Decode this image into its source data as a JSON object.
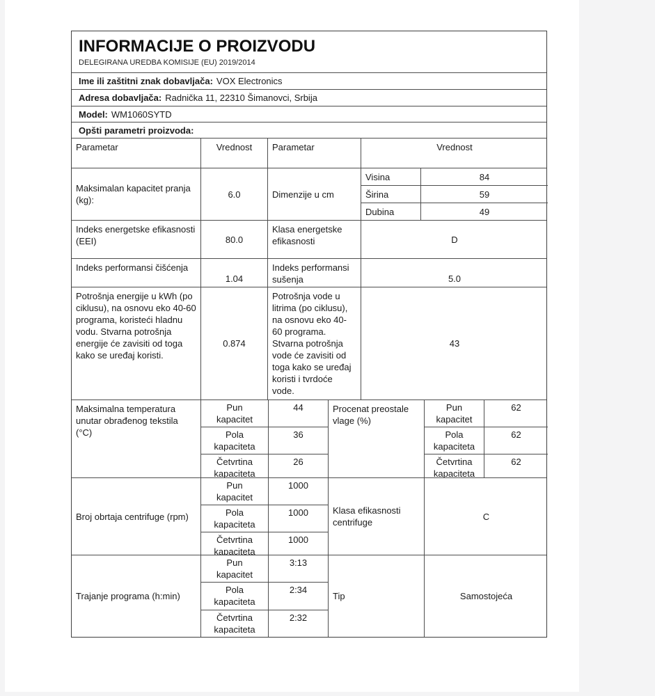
{
  "header": {
    "title": "INFORMACIJE O PROIZVODU",
    "subtitle": "DELEGIRANA UREDBA KOMISIJE (EU) 2019/2014"
  },
  "info_rows": {
    "supplier": {
      "label": "Ime ili zaštitni znak dobavljača:",
      "value": "VOX Electronics"
    },
    "address": {
      "label": "Adresa dobavljača:",
      "value": "Radnička 11, 22310 Šimanovci, Srbija"
    },
    "model": {
      "label": "Model:",
      "value": "WM1060SYTD"
    },
    "section": {
      "label": "Opšti parametri proizvoda:"
    }
  },
  "grid_header": {
    "param1": "Parametar",
    "value1": "Vrednost",
    "param2": "Parametar",
    "value2": "Vrednost"
  },
  "rows": {
    "capacity": {
      "label": "Maksimalan kapacitet pranja (kg):",
      "value": "6.0",
      "label2": "Dimenzije u cm",
      "dims": [
        {
          "name": "Visina",
          "value": "84"
        },
        {
          "name": "Širina",
          "value": "59"
        },
        {
          "name": "Dubina",
          "value": "49"
        }
      ]
    },
    "eei": {
      "label": "Indeks energetske efikasnosti (EEI)",
      "value": "80.0",
      "label2": "Klasa energetske efikasnosti",
      "value2": "D"
    },
    "performance": {
      "label": "Indeks performansi čišćenja",
      "value": "1.04",
      "label2": "Indeks performansi sušenja",
      "value2": "5.0"
    },
    "energy": {
      "label": "Potrošnja energije u kWh (po ciklusu), na osnovu eko 40-60 programa, koristeći hladnu vodu. Stvarna potrošnja energije će zavisiti od toga kako se uređaj koristi.",
      "value": "0.874",
      "label2": "Potrošnja vode u litrima (po ciklusu), na osnovu eko 40-60 programa. Stvarna potrošnja vode će zavisiti od toga kako se uređaj koristi i tvrdoće vode.",
      "value2": "43"
    },
    "temperature": {
      "label": "Maksimalna temperatura unutar obrađenog tekstila (°C)",
      "sub": [
        {
          "name": "Pun kapacitet",
          "value": "44"
        },
        {
          "name": "Pola kapaciteta",
          "value": "36"
        },
        {
          "name": "Četvrtina kapaciteta",
          "value": "26"
        }
      ],
      "label2": "Procenat preostale vlage (%)",
      "sub2": [
        {
          "name": "Pun kapacitet",
          "value": "62"
        },
        {
          "name": "Pola kapaciteta",
          "value": "62"
        },
        {
          "name": "Četvrtina kapaciteta",
          "value": "62"
        }
      ]
    },
    "spin": {
      "label": "Broj obrtaja centrifuge (rpm)",
      "sub": [
        {
          "name": "Pun kapacitet",
          "value": "1000"
        },
        {
          "name": "Pola kapaciteta",
          "value": "1000"
        },
        {
          "name": "Četvrtina kapaciteta",
          "value": "1000"
        }
      ],
      "label2": "Klasa efikasnosti centrifuge",
      "value2": "C"
    },
    "duration": {
      "label": "Trajanje programa (h:min)",
      "sub": [
        {
          "name": "Pun kapacitet",
          "value": "3:13"
        },
        {
          "name": "Pola kapaciteta",
          "value": "2:34"
        },
        {
          "name": "Četvrtina kapaciteta",
          "value": "2:32"
        }
      ],
      "label2": "Tip",
      "value2": "Samostojeća"
    }
  },
  "colors": {
    "table_border": "#4d4d4d",
    "page_background": "#ffffff",
    "canvas_background": "#f4f4f5"
  }
}
